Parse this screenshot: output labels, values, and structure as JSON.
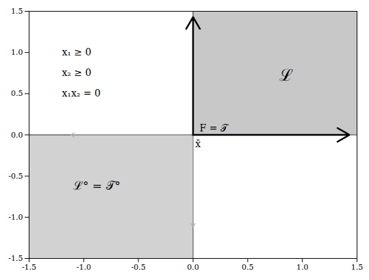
{
  "chart_data": {
    "type": "quadrant",
    "xlim": [
      -1.5,
      1.5
    ],
    "ylim": [
      -1.5,
      1.5
    ],
    "xticks": [
      -1.5,
      {
        "value": -1.0,
        "label": "-1.0"
      },
      -0.5,
      {
        "value": 0.0,
        "label": "0.0"
      },
      0.5,
      {
        "value": 1.0,
        "label": "1.0"
      },
      1.5
    ],
    "yticks": [
      -1.5,
      {
        "value": -1.0,
        "label": "-1.0"
      },
      -0.5,
      {
        "value": 0.0,
        "label": "0.0"
      },
      0.5,
      {
        "value": 1.0,
        "label": "1.0"
      },
      1.5
    ],
    "grid": false,
    "regions": [
      {
        "x": [
          0,
          1.5
        ],
        "y": [
          0,
          1.5
        ],
        "color": "#c8c8c8"
      },
      {
        "x": [
          -1.5,
          0
        ],
        "y": [
          -1.5,
          0
        ],
        "color": "#d2d2d2"
      }
    ],
    "reference_lines": {
      "x": [
        0
      ],
      "y": [
        0
      ]
    },
    "arrows_light": {
      "color": "#b0b0b0",
      "segments": [
        [
          -0.02,
          0,
          -1.12,
          0
        ],
        [
          0,
          -0.02,
          0,
          -1.12
        ]
      ]
    },
    "arrows_bold": {
      "color": "#000000",
      "segments": [
        [
          0,
          0,
          1.43,
          0
        ],
        [
          0,
          0,
          0,
          1.43
        ]
      ]
    },
    "annotations": [
      {
        "text": "ℒ",
        "x": 0.85,
        "y": 0.72
      },
      {
        "text": "ℒ° = 𝒯°",
        "x": -0.88,
        "y": -0.62
      },
      {
        "text": "F = 𝒯",
        "x": 0.06,
        "y": 0.04
      },
      {
        "text": "x̄",
        "x": 0.02,
        "y": -0.07
      },
      {
        "text": "x₁ ≥ 0",
        "x": -1.2,
        "y": 1.05
      },
      {
        "text": "x₂ ≥ 0",
        "x": -1.2,
        "y": 0.8
      },
      {
        "text": "x₁x₂ = 0",
        "x": -1.2,
        "y": 0.55
      }
    ]
  }
}
